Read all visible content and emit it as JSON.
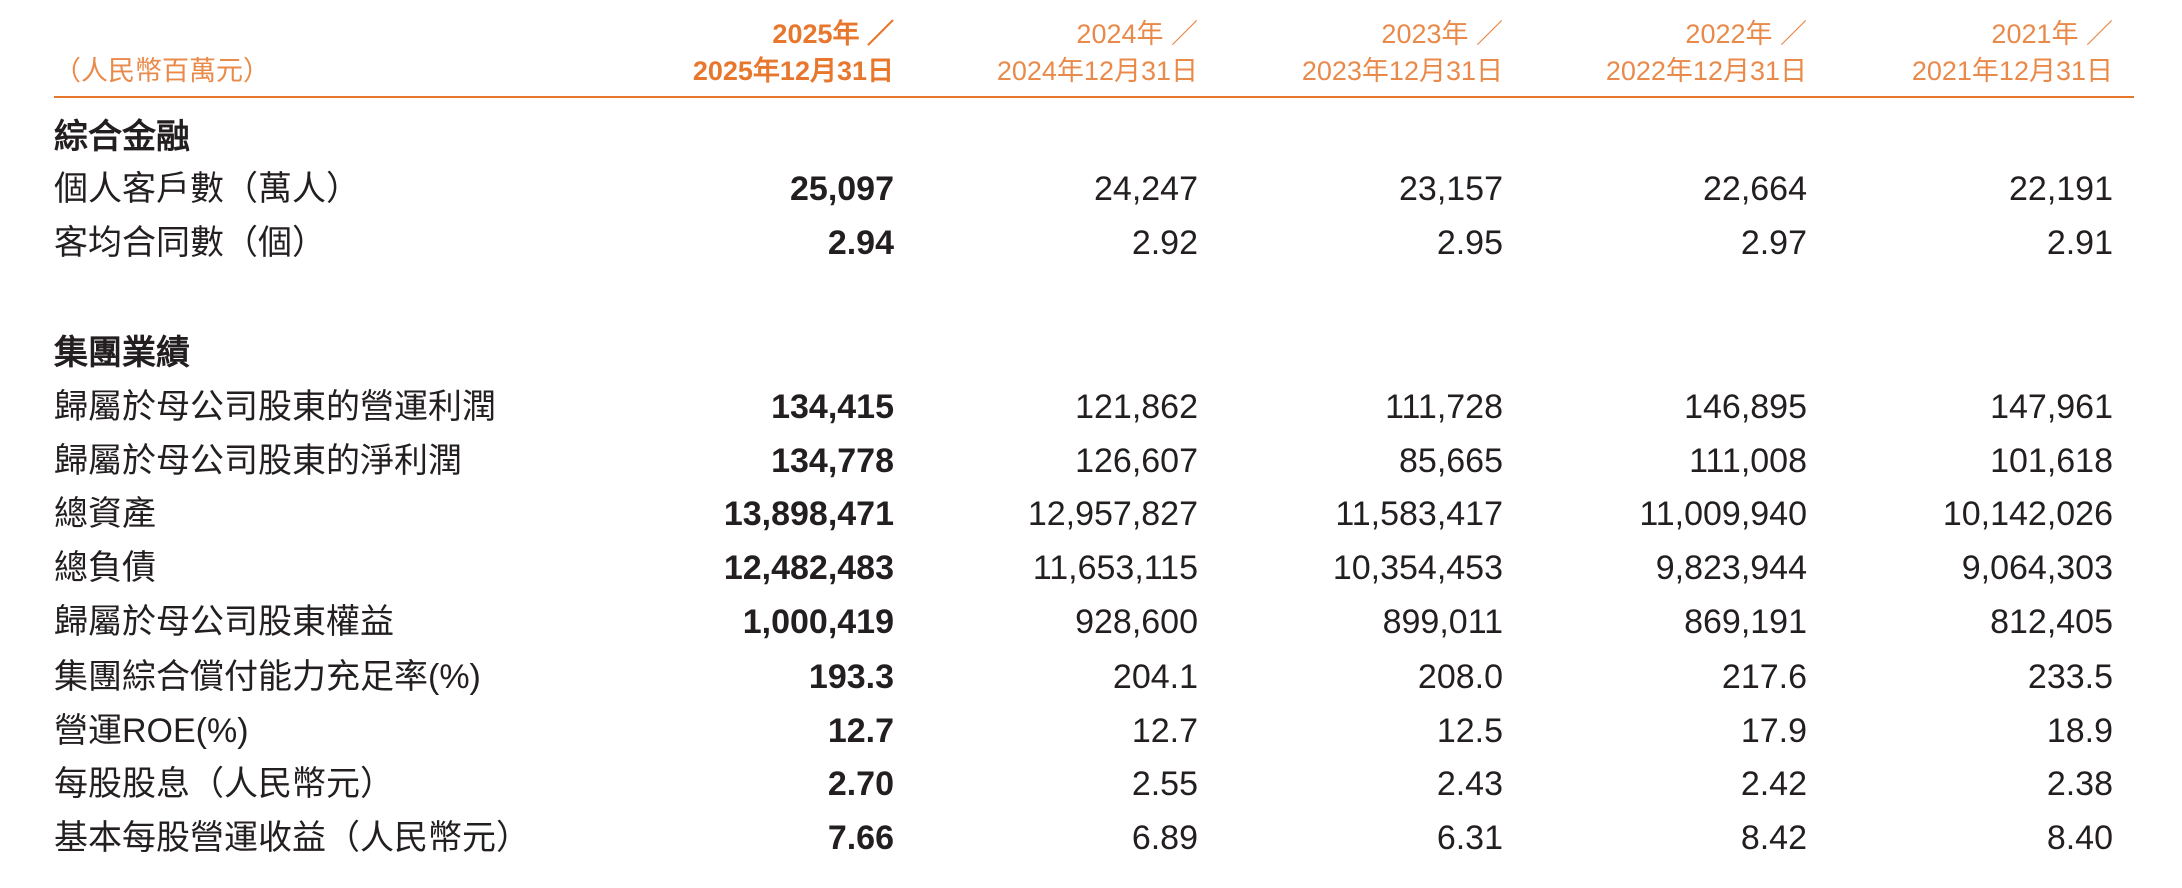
{
  "header": {
    "unit": "（人民幣百萬元）",
    "columns": [
      {
        "year": "2025年 ／",
        "date": "2025年12月31日"
      },
      {
        "year": "2024年 ／",
        "date": "2024年12月31日"
      },
      {
        "year": "2023年 ／",
        "date": "2023年12月31日"
      },
      {
        "year": "2022年 ／",
        "date": "2022年12月31日"
      },
      {
        "year": "2021年 ／",
        "date": "2021年12月31日"
      }
    ]
  },
  "sections": [
    {
      "title": "綜合金融",
      "rows": [
        {
          "label": "個人客戶數（萬人）",
          "values": [
            "25,097",
            "24,247",
            "23,157",
            "22,664",
            "22,191"
          ]
        },
        {
          "label": "客均合同數（個）",
          "values": [
            "2.94",
            "2.92",
            "2.95",
            "2.97",
            "2.91"
          ]
        }
      ]
    },
    {
      "title": "集團業績",
      "rows": [
        {
          "label": "歸屬於母公司股東的營運利潤",
          "values": [
            "134,415",
            "121,862",
            "111,728",
            "146,895",
            "147,961"
          ]
        },
        {
          "label": "歸屬於母公司股東的淨利潤",
          "values": [
            "134,778",
            "126,607",
            "85,665",
            "111,008",
            "101,618"
          ]
        },
        {
          "label": "總資產",
          "values": [
            "13,898,471",
            "12,957,827",
            "11,583,417",
            "11,009,940",
            "10,142,026"
          ]
        },
        {
          "label": "總負債",
          "values": [
            "12,482,483",
            "11,653,115",
            "10,354,453",
            "9,823,944",
            "9,064,303"
          ]
        },
        {
          "label": "歸屬於母公司股東權益",
          "values": [
            "1,000,419",
            "928,600",
            "899,011",
            "869,191",
            "812,405"
          ]
        },
        {
          "label": "集團綜合償付能力充足率(%)",
          "values": [
            "193.3",
            "204.1",
            "208.0",
            "217.6",
            "233.5"
          ]
        },
        {
          "label": "營運ROE(%)",
          "values": [
            "12.7",
            "12.7",
            "12.5",
            "17.9",
            "18.9"
          ]
        },
        {
          "label": "每股股息（人民幣元）",
          "values": [
            "2.70",
            "2.55",
            "2.43",
            "2.42",
            "2.38"
          ]
        },
        {
          "label": "基本每股營運收益（人民幣元）",
          "values": [
            "7.66",
            "6.89",
            "6.31",
            "8.42",
            "8.40"
          ]
        }
      ]
    }
  ],
  "colors": {
    "accent": "#E8772E",
    "text": "#231F20"
  }
}
